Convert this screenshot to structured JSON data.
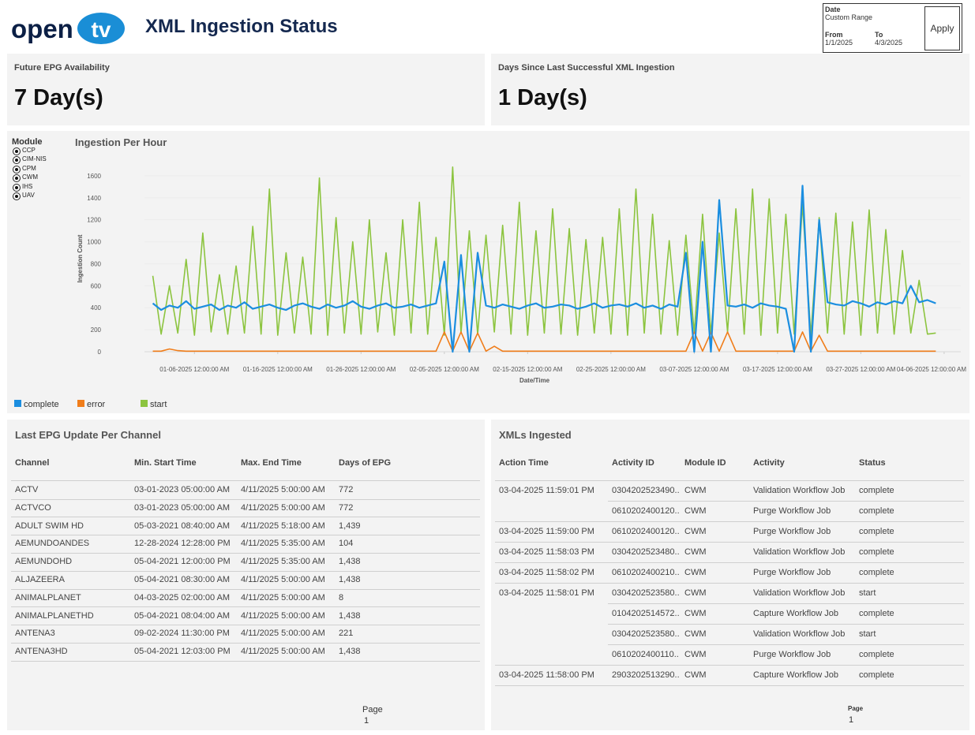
{
  "header": {
    "logo_text": "open",
    "logo_mark": "tv",
    "title": "XML Ingestion Status"
  },
  "date_filter": {
    "label": "Date",
    "range": "Custom Range",
    "from_label": "From",
    "to_label": "To",
    "from": "1/1/2025",
    "to": "4/3/2025",
    "apply": "Apply"
  },
  "kpis": [
    {
      "label": "Future EPG Availability",
      "value": "7 Day(s)"
    },
    {
      "label": "Days Since Last Successful XML Ingestion",
      "value": "1 Day(s)"
    }
  ],
  "module_filter": {
    "label": "Module",
    "options": [
      "CCP",
      "CIM-NIS",
      "CPM",
      "CWM",
      "IHS",
      "UAV"
    ]
  },
  "chart_data": {
    "type": "line",
    "title": "Ingestion Per Hour",
    "x_label": "Date/Time",
    "y_label": "Ingestion Count",
    "legend": "bottom-left",
    "grid": true,
    "x": [
      "01-01-2025 12:00:00 AM",
      "01-02-2025 12:00:00 AM",
      "01-03-2025 12:00:00 AM",
      "01-04-2025 12:00:00 AM",
      "01-05-2025 12:00:00 AM",
      "01-06-2025 12:00:00 AM",
      "01-07-2025 12:00:00 AM",
      "01-08-2025 12:00:00 AM",
      "01-09-2025 12:00:00 AM",
      "01-10-2025 12:00:00 AM",
      "01-11-2025 12:00:00 AM",
      "01-12-2025 12:00:00 AM",
      "01-13-2025 12:00:00 AM",
      "01-14-2025 12:00:00 AM",
      "01-15-2025 12:00:00 AM",
      "01-16-2025 12:00:00 AM",
      "01-17-2025 12:00:00 AM",
      "01-18-2025 12:00:00 AM",
      "01-19-2025 12:00:00 AM",
      "01-20-2025 12:00:00 AM",
      "01-21-2025 12:00:00 AM",
      "01-22-2025 12:00:00 AM",
      "01-23-2025 12:00:00 AM",
      "01-24-2025 12:00:00 AM",
      "01-25-2025 12:00:00 AM",
      "01-26-2025 12:00:00 AM",
      "01-27-2025 12:00:00 AM",
      "01-28-2025 12:00:00 AM",
      "01-29-2025 12:00:00 AM",
      "01-30-2025 12:00:00 AM",
      "01-31-2025 12:00:00 AM",
      "02-01-2025 12:00:00 AM",
      "02-02-2025 12:00:00 AM",
      "02-03-2025 12:00:00 AM",
      "02-04-2025 12:00:00 AM",
      "02-05-2025 12:00:00 AM",
      "02-06-2025 12:00:00 AM",
      "02-07-2025 12:00:00 AM",
      "02-08-2025 12:00:00 AM",
      "02-09-2025 12:00:00 AM",
      "02-10-2025 12:00:00 AM",
      "02-11-2025 12:00:00 AM",
      "02-12-2025 12:00:00 AM",
      "02-13-2025 12:00:00 AM",
      "02-14-2025 12:00:00 AM",
      "02-15-2025 12:00:00 AM",
      "02-16-2025 12:00:00 AM",
      "02-17-2025 12:00:00 AM",
      "02-18-2025 12:00:00 AM",
      "02-19-2025 12:00:00 AM",
      "02-20-2025 12:00:00 AM",
      "02-21-2025 12:00:00 AM",
      "02-22-2025 12:00:00 AM",
      "02-23-2025 12:00:00 AM",
      "02-24-2025 12:00:00 AM",
      "02-25-2025 12:00:00 AM",
      "02-26-2025 12:00:00 AM",
      "02-27-2025 12:00:00 AM",
      "02-28-2025 12:00:00 AM",
      "03-01-2025 12:00:00 AM",
      "03-02-2025 12:00:00 AM",
      "03-03-2025 12:00:00 AM",
      "03-04-2025 12:00:00 AM",
      "03-05-2025 12:00:00 AM",
      "03-06-2025 12:00:00 AM",
      "03-07-2025 12:00:00 AM",
      "03-08-2025 12:00:00 AM",
      "03-09-2025 12:00:00 AM",
      "03-10-2025 12:00:00 AM",
      "03-11-2025 12:00:00 AM",
      "03-12-2025 12:00:00 AM",
      "03-13-2025 12:00:00 AM",
      "03-14-2025 12:00:00 AM",
      "03-15-2025 12:00:00 AM",
      "03-16-2025 12:00:00 AM",
      "03-17-2025 12:00:00 AM",
      "03-18-2025 12:00:00 AM",
      "03-19-2025 12:00:00 AM",
      "03-20-2025 12:00:00 AM",
      "03-21-2025 12:00:00 AM",
      "03-22-2025 12:00:00 AM",
      "03-23-2025 12:00:00 AM",
      "03-24-2025 12:00:00 AM",
      "03-25-2025 12:00:00 AM",
      "03-26-2025 12:00:00 AM",
      "03-27-2025 12:00:00 AM",
      "03-28-2025 12:00:00 AM",
      "03-29-2025 12:00:00 AM",
      "03-30-2025 12:00:00 AM",
      "03-31-2025 12:00:00 AM",
      "04-01-2025 12:00:00 AM",
      "04-02-2025 12:00:00 AM",
      "04-03-2025 12:00:00 AM",
      "04-04-2025 12:00:00 AM",
      "04-05-2025 12:00:00 AM"
    ],
    "series": [
      {
        "name": "complete",
        "color": "#1b8ee0",
        "values": [
          440,
          380,
          420,
          400,
          460,
          390,
          410,
          430,
          380,
          420,
          400,
          450,
          390,
          410,
          430,
          400,
          380,
          420,
          440,
          410,
          390,
          430,
          400,
          420,
          460,
          410,
          390,
          420,
          440,
          400,
          410,
          430,
          400,
          420,
          440,
          820,
          0,
          880,
          0,
          900,
          420,
          400,
          430,
          410,
          390,
          420,
          440,
          400,
          410,
          430,
          420,
          390,
          410,
          440,
          400,
          420,
          430,
          410,
          440,
          400,
          420,
          390,
          430,
          410,
          900,
          0,
          1000,
          0,
          1380,
          420,
          410,
          430,
          400,
          440,
          420,
          410,
          390,
          0,
          1510,
          0,
          1200,
          450,
          430,
          420,
          460,
          440,
          410,
          450,
          430,
          460,
          440,
          600,
          450,
          470,
          440
        ]
      },
      {
        "name": "error",
        "color": "#f07d1a",
        "values": [
          5,
          5,
          25,
          10,
          5,
          5,
          5,
          5,
          5,
          5,
          5,
          5,
          5,
          5,
          5,
          5,
          5,
          5,
          5,
          5,
          5,
          5,
          5,
          5,
          5,
          5,
          5,
          5,
          5,
          5,
          5,
          5,
          5,
          5,
          5,
          180,
          5,
          180,
          5,
          170,
          5,
          50,
          5,
          5,
          5,
          5,
          5,
          5,
          5,
          5,
          5,
          5,
          5,
          5,
          5,
          5,
          5,
          5,
          5,
          5,
          5,
          5,
          5,
          5,
          5,
          180,
          5,
          175,
          5,
          180,
          5,
          5,
          5,
          5,
          5,
          5,
          5,
          5,
          180,
          5,
          150,
          5,
          5,
          5,
          5,
          5,
          5,
          5,
          5,
          5,
          5,
          5,
          5,
          5,
          5
        ]
      },
      {
        "name": "start",
        "color": "#8cc43f",
        "values": [
          690,
          160,
          600,
          170,
          840,
          150,
          1080,
          180,
          700,
          160,
          780,
          170,
          1140,
          160,
          1480,
          150,
          900,
          170,
          860,
          160,
          1580,
          150,
          1220,
          170,
          1000,
          160,
          1200,
          180,
          900,
          150,
          1200,
          170,
          1360,
          160,
          1040,
          150,
          1680,
          170,
          1100,
          160,
          1060,
          180,
          1150,
          160,
          1360,
          150,
          1100,
          170,
          1300,
          160,
          1120,
          150,
          1020,
          170,
          1040,
          160,
          1300,
          150,
          1480,
          170,
          1250,
          160,
          1010,
          150,
          1060,
          170,
          1250,
          160,
          1080,
          180,
          1300,
          160,
          1480,
          150,
          1390,
          170,
          1250,
          160,
          1340,
          150,
          1220,
          170,
          1260,
          160,
          1180,
          150,
          1290,
          170,
          1110,
          160,
          920,
          170,
          650,
          160,
          170
        ]
      }
    ],
    "xlim": [
      "12-31-2024 12:00:00 AM",
      "04-08-2025 12:00:00 AM"
    ],
    "xticks": [
      "01-06-2025 12:00:00 AM",
      "01-16-2025 12:00:00 AM",
      "01-26-2025 12:00:00 AM",
      "02-05-2025 12:00:00 AM",
      "02-15-2025 12:00:00 AM",
      "02-25-2025 12:00:00 AM",
      "03-07-2025 12:00:00 AM",
      "03-17-2025 12:00:00 AM",
      "03-27-2025 12:00:00 AM",
      "04-06-2025 12:00:00 AM"
    ],
    "ylim": [
      0,
      1750
    ],
    "yticks": [
      0,
      200,
      400,
      600,
      800,
      1000,
      1200,
      1400,
      1600
    ]
  },
  "epg_table": {
    "title": "Last EPG Update Per Channel",
    "columns": [
      "Channel",
      "Min. Start Time",
      "Max. End Time",
      "Days of EPG"
    ],
    "rows": [
      [
        "ACTV",
        "03-01-2023 05:00:00 AM",
        "4/11/2025 5:00:00 AM",
        "772"
      ],
      [
        "ACTVCO",
        "03-01-2023 05:00:00 AM",
        "4/11/2025 5:00:00 AM",
        "772"
      ],
      [
        "ADULT SWIM HD",
        "05-03-2021 08:40:00 AM",
        "4/11/2025 5:18:00 AM",
        "1,439"
      ],
      [
        "AEMUNDOANDES",
        "12-28-2024 12:28:00 PM",
        "4/11/2025 5:35:00 AM",
        "104"
      ],
      [
        "AEMUNDOHD",
        "05-04-2021 12:00:00 PM",
        "4/11/2025 5:35:00 AM",
        "1,438"
      ],
      [
        "ALJAZEERA",
        "05-04-2021 08:30:00 AM",
        "4/11/2025 5:00:00 AM",
        "1,438"
      ],
      [
        "ANIMALPLANET",
        "04-03-2025 02:00:00 AM",
        "4/11/2025 5:00:00 AM",
        "8"
      ],
      [
        "ANIMALPLANETHD",
        "05-04-2021 08:04:00 AM",
        "4/11/2025 5:00:00 AM",
        "1,438"
      ],
      [
        "ANTENA3",
        "09-02-2024 11:30:00 PM",
        "4/11/2025 5:00:00 AM",
        "221"
      ],
      [
        "ANTENA3HD",
        "05-04-2021 12:03:00 PM",
        "4/11/2025 5:00:00 AM",
        "1,438"
      ]
    ],
    "page_label": "Page",
    "page": 1
  },
  "xml_table": {
    "title": "XMLs Ingested",
    "columns": [
      "Action Time",
      "Activity ID",
      "Module ID",
      "Activity",
      "Status"
    ],
    "groups": [
      {
        "action_time": "03-04-2025 11:59:01 PM",
        "rows": [
          [
            "0304202523490..",
            "CWM",
            "Validation Workflow Job",
            "complete"
          ],
          [
            "0610202400120..",
            "CWM",
            "Purge Workflow Job",
            "complete"
          ]
        ]
      },
      {
        "action_time": "03-04-2025 11:59:00 PM",
        "rows": [
          [
            "0610202400120..",
            "CWM",
            "Purge Workflow Job",
            "complete"
          ]
        ]
      },
      {
        "action_time": "03-04-2025 11:58:03 PM",
        "rows": [
          [
            "0304202523480..",
            "CWM",
            "Validation Workflow Job",
            "complete"
          ]
        ]
      },
      {
        "action_time": "03-04-2025 11:58:02 PM",
        "rows": [
          [
            "0610202400210..",
            "CWM",
            "Purge Workflow Job",
            "complete"
          ]
        ]
      },
      {
        "action_time": "03-04-2025 11:58:01 PM",
        "rows": [
          [
            "0304202523580..",
            "CWM",
            "Validation Workflow Job",
            "start"
          ],
          [
            "0104202514572..",
            "CWM",
            "Capture Workflow Job",
            "complete"
          ],
          [
            "0304202523580..",
            "CWM",
            "Validation Workflow Job",
            "start"
          ],
          [
            "0610202400110..",
            "CWM",
            "Purge Workflow Job",
            "complete"
          ]
        ]
      },
      {
        "action_time": "03-04-2025 11:58:00 PM",
        "rows": [
          [
            "2903202513290..",
            "CWM",
            "Capture Workflow Job",
            "complete"
          ]
        ]
      }
    ],
    "page_label": "Page",
    "page": 1
  }
}
